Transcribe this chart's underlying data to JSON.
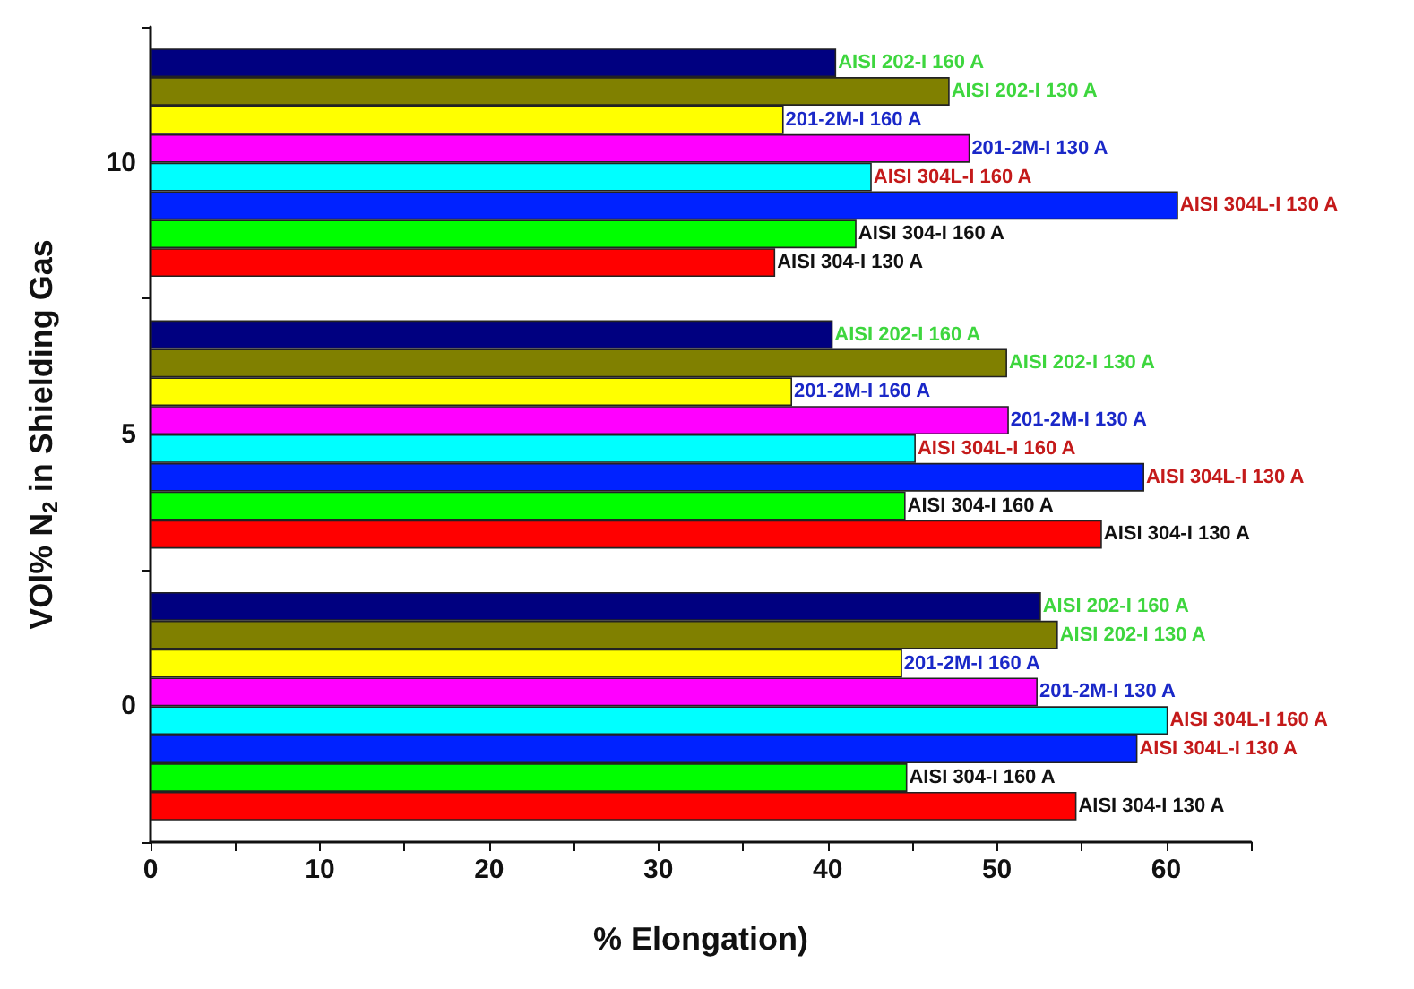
{
  "chart_data": {
    "type": "bar",
    "orientation": "horizontal",
    "xlabel": "% Elongation)",
    "ylabel": "VOl% N$_{2}$ in Shielding Gas",
    "categories": [
      "10",
      "5",
      "0"
    ],
    "series": [
      {
        "name": "AISI 304-I 130 A",
        "color": "#ff0000",
        "values": [
          36.9,
          56.2,
          54.7
        ]
      },
      {
        "name": "AISI 304-I 160 A",
        "color": "#00ff00",
        "values": [
          41.7,
          44.6,
          44.7
        ]
      },
      {
        "name": "AISI 304L-I 130 A",
        "color": "#0022ff",
        "values": [
          60.7,
          58.7,
          58.3
        ]
      },
      {
        "name": "AISI 304L-I 160 A",
        "color": "#00ffff",
        "values": [
          42.6,
          45.2,
          60.1
        ]
      },
      {
        "name": "201-2M-I 130 A",
        "color": "#ff00ff",
        "values": [
          48.4,
          50.7,
          52.4
        ]
      },
      {
        "name": "201-2M-I 160 A",
        "color": "#ffff00",
        "values": [
          37.4,
          37.9,
          44.4
        ]
      },
      {
        "name": "AISI 202-I 130 A",
        "color": "#808000",
        "values": [
          47.2,
          50.6,
          53.6
        ]
      },
      {
        "name": "AISI 202-I 160 A",
        "color": "#000080",
        "values": [
          40.5,
          40.3,
          52.6
        ]
      }
    ],
    "xlim": [
      0,
      65
    ],
    "xticks": [
      0,
      {
        "value": 5,
        "label": null
      },
      10,
      {
        "value": 15,
        "label": null
      },
      20,
      {
        "value": 25,
        "label": null
      },
      30,
      {
        "value": 35,
        "label": null
      },
      40,
      {
        "value": 45,
        "label": null
      },
      50,
      {
        "value": 55,
        "label": null
      },
      60,
      {
        "value": 65,
        "label": null
      }
    ],
    "grid": false,
    "legend": false
  }
}
